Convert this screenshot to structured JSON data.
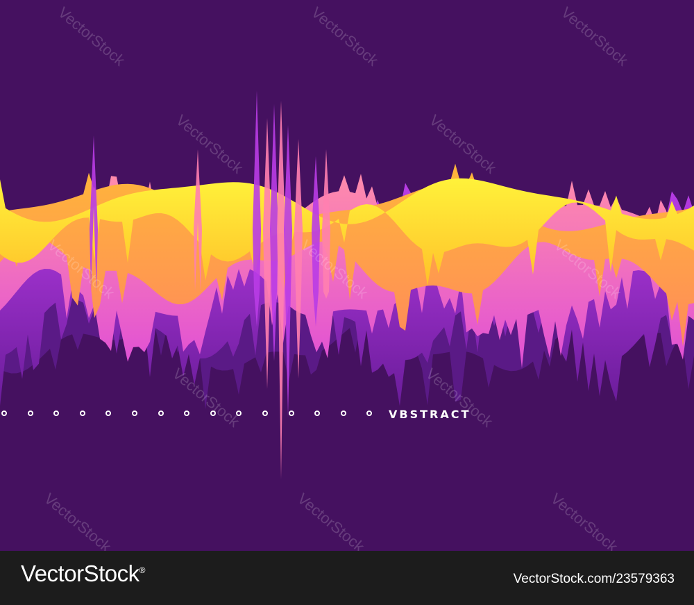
{
  "artwork": {
    "word": "VBSTRACT",
    "dot_count": 15,
    "colors": {
      "background": "#451160",
      "wave_yellow": "#fde52a",
      "wave_orange": "#ffad3a",
      "wave_pink": "#ff7fb0",
      "wave_violet": "#a52bdc",
      "wave_deep": "#6a1c9a"
    }
  },
  "watermark": {
    "text": "VectorStock"
  },
  "footer": {
    "logo": "VectorStock",
    "logo_mark": "®",
    "url": "VectorStock.com/23579363"
  }
}
